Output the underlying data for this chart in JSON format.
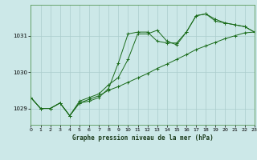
{
  "title": "Graphe pression niveau de la mer (hPa)",
  "bg_color": "#cce8e8",
  "grid_color": "#aacccc",
  "line_color": "#1a6b1a",
  "spine_color": "#5a9a5a",
  "x_min": 0,
  "x_max": 23,
  "y_min": 1028.55,
  "y_max": 1031.85,
  "yticks": [
    1029,
    1030,
    1031
  ],
  "xticks": [
    0,
    1,
    2,
    3,
    4,
    5,
    6,
    7,
    8,
    9,
    10,
    11,
    12,
    13,
    14,
    15,
    16,
    17,
    18,
    19,
    20,
    21,
    22,
    23
  ],
  "series1_x": [
    0,
    1,
    2,
    3,
    4,
    5,
    6,
    7,
    8,
    9,
    10,
    11,
    12,
    13,
    14,
    15,
    16,
    17,
    18,
    19,
    20,
    21,
    22,
    23
  ],
  "series1_y": [
    1029.3,
    1029.0,
    1029.0,
    1029.15,
    1028.8,
    1029.15,
    1029.2,
    1029.3,
    1029.55,
    1030.25,
    1031.05,
    1031.1,
    1031.1,
    1030.85,
    1030.8,
    1030.8,
    1031.1,
    1031.55,
    1031.6,
    1031.45,
    1031.35,
    1031.3,
    1031.25,
    1031.1
  ],
  "series2_x": [
    0,
    1,
    2,
    3,
    4,
    5,
    6,
    7,
    8,
    9,
    10,
    11,
    12,
    13,
    14,
    15,
    16,
    17,
    18,
    19,
    20,
    21,
    22,
    23
  ],
  "series2_y": [
    1029.3,
    1029.0,
    1029.0,
    1029.15,
    1028.8,
    1029.15,
    1029.25,
    1029.35,
    1029.5,
    1029.6,
    1029.72,
    1029.84,
    1029.96,
    1030.1,
    1030.22,
    1030.35,
    1030.48,
    1030.62,
    1030.72,
    1030.82,
    1030.92,
    1031.0,
    1031.08,
    1031.1
  ],
  "series3_x": [
    0,
    1,
    2,
    3,
    4,
    5,
    6,
    7,
    8,
    9,
    10,
    11,
    12,
    13,
    14,
    15,
    16,
    17,
    18,
    19,
    20,
    21,
    22,
    23
  ],
  "series3_y": [
    1029.3,
    1029.0,
    1029.0,
    1029.15,
    1028.8,
    1029.2,
    1029.3,
    1029.4,
    1029.65,
    1029.85,
    1030.35,
    1031.05,
    1031.05,
    1031.15,
    1030.85,
    1030.75,
    1031.1,
    1031.55,
    1031.6,
    1031.4,
    1031.35,
    1031.3,
    1031.25,
    1031.1
  ]
}
